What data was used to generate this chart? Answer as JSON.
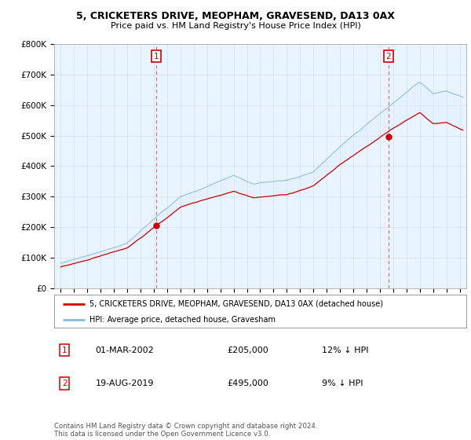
{
  "title": "5, CRICKETERS DRIVE, MEOPHAM, GRAVESEND, DA13 0AX",
  "subtitle": "Price paid vs. HM Land Registry's House Price Index (HPI)",
  "ylabel_ticks": [
    "£0",
    "£100K",
    "£200K",
    "£300K",
    "£400K",
    "£500K",
    "£600K",
    "£700K",
    "£800K"
  ],
  "ylim": [
    0,
    800000
  ],
  "xlim_start": 1994.5,
  "xlim_end": 2025.5,
  "sale1_date": 2002.17,
  "sale1_label": "1",
  "sale1_price": 205000,
  "sale2_date": 2019.64,
  "sale2_label": "2",
  "sale2_price": 495000,
  "legend_line1": "5, CRICKETERS DRIVE, MEOPHAM, GRAVESEND, DA13 0AX (detached house)",
  "legend_line2": "HPI: Average price, detached house, Gravesham",
  "annot1_label": "1",
  "annot1_date": "01-MAR-2002",
  "annot1_price": "£205,000",
  "annot1_hpi": "12% ↓ HPI",
  "annot2_label": "2",
  "annot2_date": "19-AUG-2019",
  "annot2_price": "£495,000",
  "annot2_hpi": "9% ↓ HPI",
  "footer": "Contains HM Land Registry data © Crown copyright and database right 2024.\nThis data is licensed under the Open Government Licence v3.0.",
  "price_line_color": "#cc0000",
  "hpi_line_color": "#88bbdd",
  "hpi_fill_color": "#ddeeff",
  "vline_color": "#dd4444",
  "background_color": "#ffffff",
  "grid_color": "#cccccc"
}
